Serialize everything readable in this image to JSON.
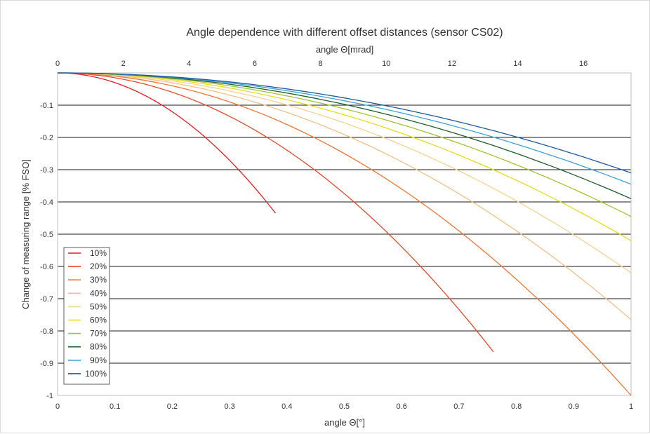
{
  "chart_data": {
    "type": "line",
    "title": "Angle dependence with different offset distances (sensor CS02)",
    "xlabel": "angle Θ[°]",
    "x2label": "angle Θ[mrad]",
    "ylabel": "Change of measuring range [% FSO]",
    "xlim": [
      0,
      1
    ],
    "x2lim": [
      0,
      17.45
    ],
    "ylim": [
      -1,
      0
    ],
    "x_ticks": [
      "0",
      "0.1",
      "0.2",
      "0.3",
      "0.4",
      "0.5",
      "0.6",
      "0.7",
      "0.8",
      "0.9",
      "1"
    ],
    "x2_ticks": [
      "0",
      "2",
      "4",
      "6",
      "8",
      "10",
      "12",
      "14",
      "16"
    ],
    "y_ticks": [
      "-0.1",
      "-0.2",
      "-0.3",
      "-0.4",
      "-0.5",
      "-0.6",
      "-0.7",
      "-0.8",
      "-0.9",
      "-1"
    ],
    "grid": "horizontal",
    "legend_position": "bottom-left",
    "series": [
      {
        "name": "10%",
        "color": "#e31e24",
        "x_end": 0.38,
        "y_end": -0.435
      },
      {
        "name": "20%",
        "color": "#e6492a",
        "x_end": 0.76,
        "y_end": -0.865
      },
      {
        "name": "30%",
        "color": "#ee7633",
        "x_end": 1.0,
        "y_end": -1.0
      },
      {
        "name": "40%",
        "color": "#f6bf8a",
        "x_end": 1.0,
        "y_end": -0.765
      },
      {
        "name": "50%",
        "color": "#fad28f",
        "x_end": 1.0,
        "y_end": -0.62
      },
      {
        "name": "60%",
        "color": "#e6dc1f",
        "x_end": 1.0,
        "y_end": -0.52
      },
      {
        "name": "70%",
        "color": "#a4c232",
        "x_end": 1.0,
        "y_end": -0.445
      },
      {
        "name": "80%",
        "color": "#1e5e2a",
        "x_end": 1.0,
        "y_end": -0.39
      },
      {
        "name": "90%",
        "color": "#3aa3d6",
        "x_end": 1.0,
        "y_end": -0.345
      },
      {
        "name": "100%",
        "color": "#1e5a9c",
        "x_end": 1.0,
        "y_end": -0.31
      }
    ]
  }
}
